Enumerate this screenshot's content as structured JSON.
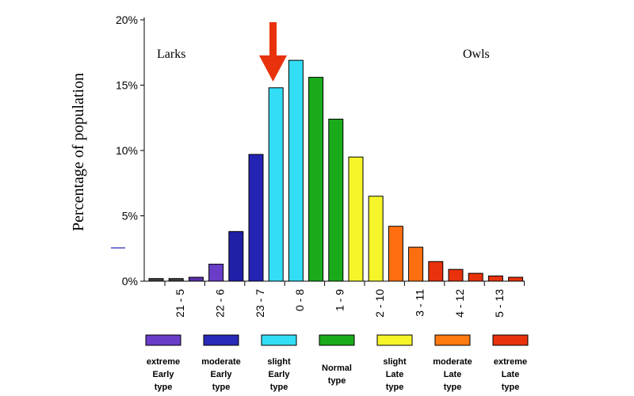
{
  "chart_data": {
    "type": "bar",
    "ylabel": "Percentage of population",
    "y_ticks": [
      "0%",
      "5%",
      "10%",
      "15%",
      "20%"
    ],
    "ylim": [
      0,
      20
    ],
    "annotations": {
      "left": "Larks",
      "right": "Owls"
    },
    "x_tick_labels": [
      "21 - 5",
      "22 - 6",
      "23 - 7",
      "0 - 8",
      "1 - 9",
      "2 - 10",
      "3 - 11",
      "4 - 12",
      "5 - 13"
    ],
    "values": [
      0.2,
      0.2,
      0.3,
      1.3,
      3.8,
      9.7,
      14.8,
      16.9,
      15.6,
      12.4,
      9.5,
      6.5,
      4.2,
      2.6,
      1.5,
      0.9,
      0.6,
      0.4,
      0.3
    ],
    "bar_colors": [
      "#404040",
      "#404040",
      "#5a2ea6",
      "#6a3dc8",
      "#1f1fa8",
      "#2424b4",
      "#33ddf5",
      "#33ddf5",
      "#1aab1a",
      "#1aab1a",
      "#f5f52a",
      "#f5f52a",
      "#ff6f10",
      "#ff6f10",
      "#e8320c",
      "#e8320c",
      "#e8320c",
      "#e8320c",
      "#e8320c"
    ],
    "highlight_arrow_color": "#e8320c",
    "legend": [
      {
        "color": "#6a3dc8",
        "lines": [
          "extreme",
          "Early",
          "type"
        ]
      },
      {
        "color": "#2a2ab8",
        "lines": [
          "moderate",
          "Early",
          "type"
        ]
      },
      {
        "color": "#33ddf5",
        "lines": [
          "slight",
          "Early",
          "type"
        ]
      },
      {
        "color": "#1aab1a",
        "lines": [
          "Normal",
          "type"
        ]
      },
      {
        "color": "#f5f52a",
        "lines": [
          "slight",
          "Late",
          "type"
        ]
      },
      {
        "color": "#ff7a10",
        "lines": [
          "moderate",
          "Late",
          "type"
        ]
      },
      {
        "color": "#e8320c",
        "lines": [
          "extreme",
          "Late",
          "type"
        ]
      }
    ]
  }
}
